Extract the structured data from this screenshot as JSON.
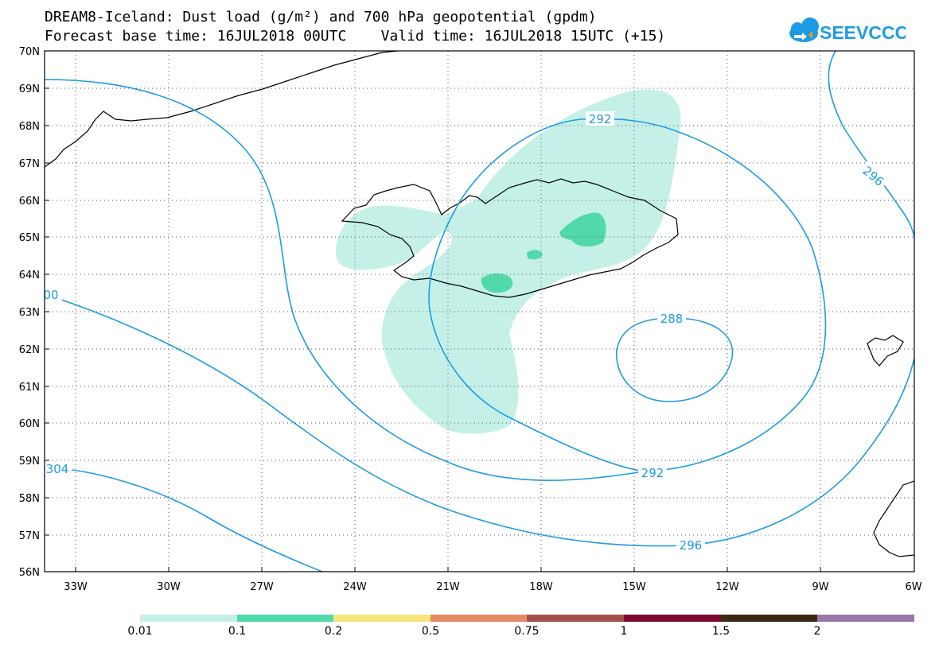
{
  "header": {
    "title_line1": "DREAM8-Iceland: Dust load (g/m²) and 700 hPa geopotential (gpdm)",
    "title_line2": "Forecast base time: 16JUL2018 00UTC    Valid time: 16JUL2018 15UTC (+15)",
    "logo_text": "SEEVCCC"
  },
  "axes": {
    "lat_labels": [
      "70N",
      "69N",
      "68N",
      "67N",
      "66N",
      "65N",
      "64N",
      "63N",
      "62N",
      "61N",
      "60N",
      "59N",
      "58N",
      "57N",
      "56N"
    ],
    "lon_labels": [
      "33W",
      "30W",
      "27W",
      "24W",
      "21W",
      "18W",
      "15W",
      "12W",
      "9W",
      "6W"
    ]
  },
  "contours": {
    "labels": [
      "292",
      "296",
      "288",
      "292",
      "296",
      "304",
      "00"
    ]
  },
  "colorbar": {
    "colors": [
      "#c5f0e8",
      "#52d9a9",
      "#f5e67e",
      "#e58a66",
      "#a3524b",
      "#7d0c33",
      "#3b2a13",
      "#9b77a8"
    ],
    "labels": [
      "0.01",
      "0.1",
      "0.2",
      "0.5",
      "0.75",
      "1",
      "1.5",
      "2"
    ]
  },
  "icons": {
    "logo": "cloud-logo-icon"
  }
}
